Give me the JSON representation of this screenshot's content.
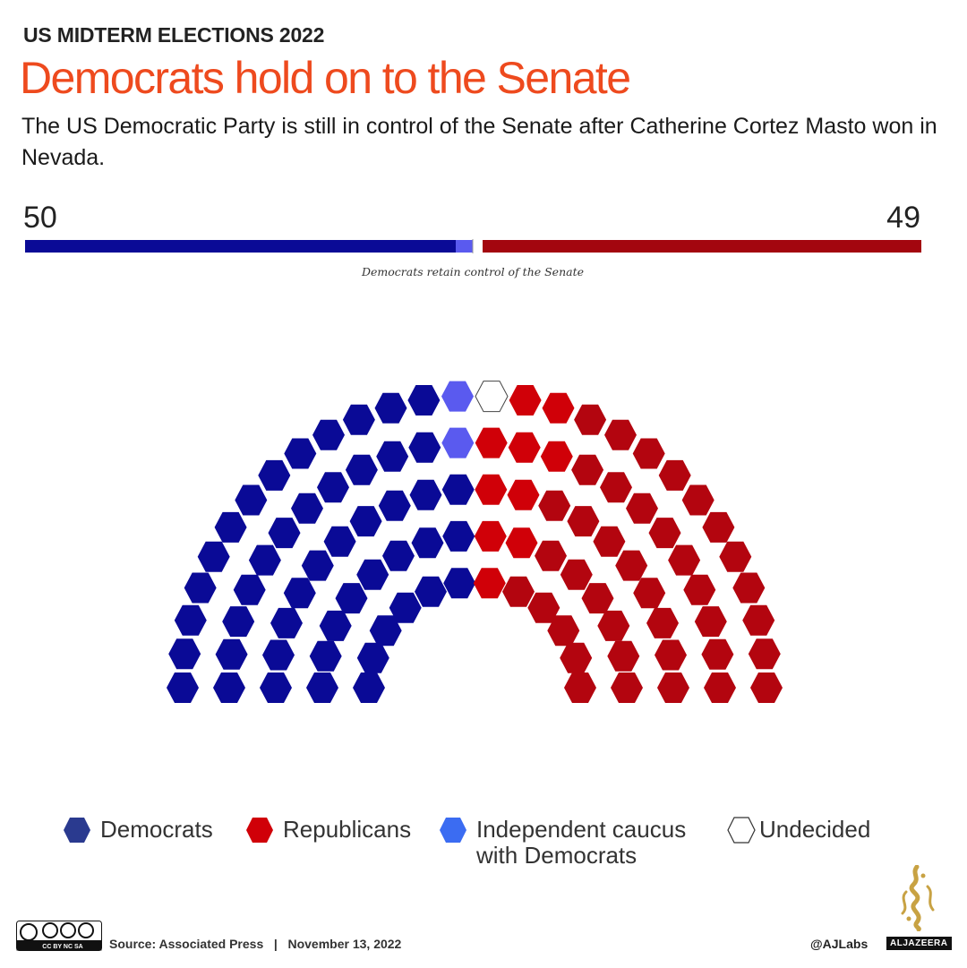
{
  "header": {
    "kicker": "US MIDTERM ELECTIONS 2022",
    "title": "Democrats hold on to the Senate",
    "subtitle": "The US Democratic Party is still in control of the Senate after Catherine Cortez Masto won in Nevada."
  },
  "totals": {
    "democrats": "50",
    "republicans": "49",
    "note": "Democrats retain control of the Senate"
  },
  "chart_data": {
    "type": "hemicycle",
    "total_seats": 100,
    "seats": [
      {
        "party": "Democrats",
        "count": 48,
        "color": "#0a0a96"
      },
      {
        "party": "Independent caucus with Democrats",
        "count": 2,
        "color": "#5a5aef"
      },
      {
        "party": "Undecided",
        "count": 1,
        "color": "#ffffff"
      },
      {
        "party": "Republicans",
        "count": 49,
        "color": "#d00008"
      }
    ],
    "rep_dark_color": "#b3050f",
    "dem_total": 50,
    "rep_total": 49,
    "majority_note": "Democrats retain control of the Senate"
  },
  "legend": [
    {
      "label": "Democrats",
      "color": "#2a3a8f",
      "icon": "hexagon-icon"
    },
    {
      "label": "Republicans",
      "color": "#d00008",
      "icon": "hexagon-icon"
    },
    {
      "label": "Independent caucus with Democrats",
      "color": "#3b6cf2",
      "icon": "hexagon-icon"
    },
    {
      "label": "Undecided",
      "color": "#ffffff",
      "icon": "hexagon-icon"
    }
  ],
  "footer": {
    "license": "CC BY NC SA",
    "source": "Source: Associated Press   |   November 13, 2022",
    "handle": "@AJLabs",
    "brand": "ALJAZEERA"
  }
}
